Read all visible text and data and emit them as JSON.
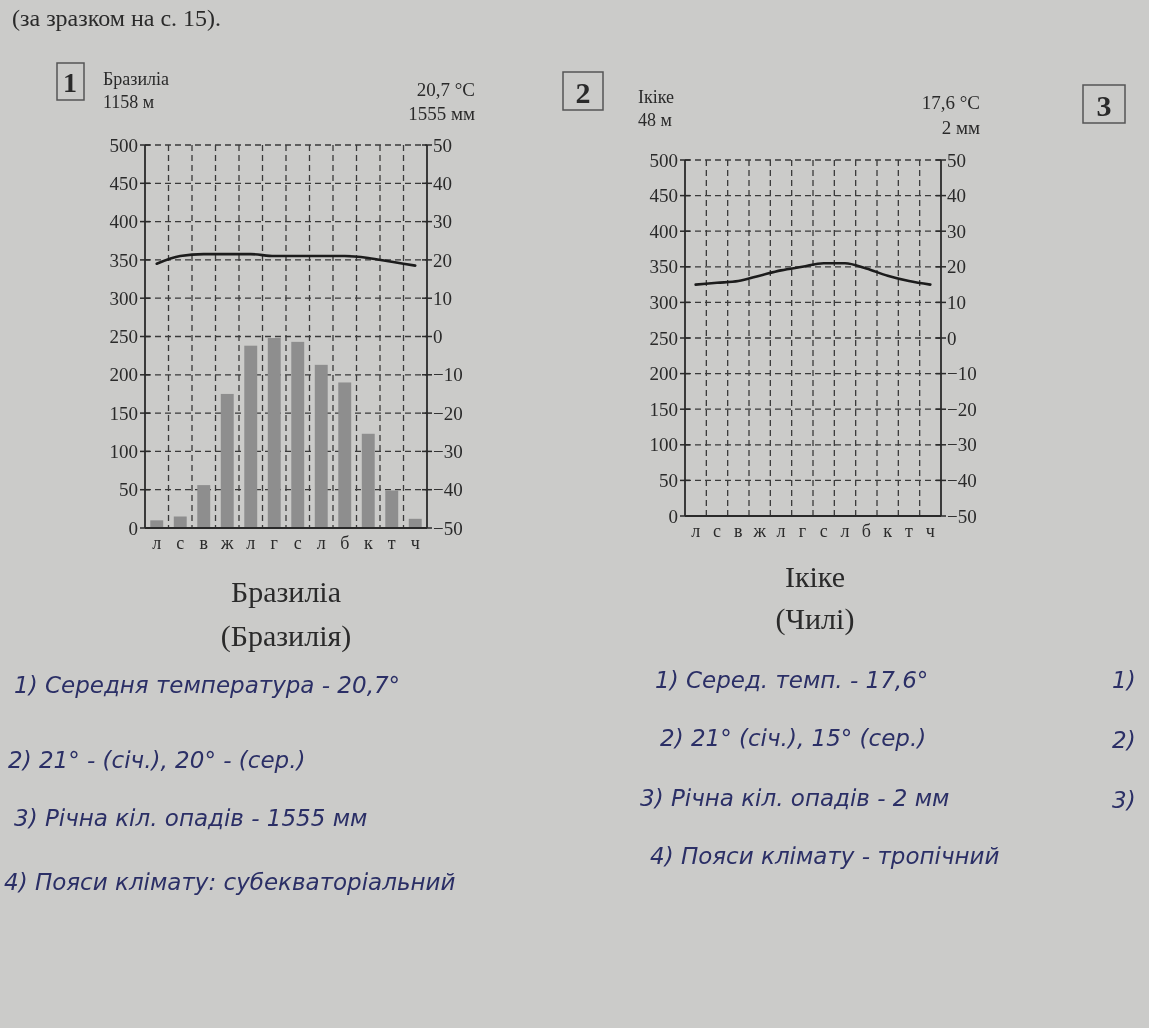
{
  "chart_data": [
    {
      "type": "bar",
      "title": "Бразиліа",
      "subtitle": "(Бразилія)",
      "annotations": [
        "1",
        "Бразиліа",
        "1158 м",
        "20,7 °C",
        "1555 мм",
        "1) Середня температура - 20,7°",
        "2) 21° - (січ.), 20° - (сер.)",
        "3) Річна кіл. опадів - 1555 мм",
        "4) Пояси клімату: субекваторіальний"
      ],
      "categories": [
        "л",
        "с",
        "в",
        "ж",
        "л",
        "г",
        "с",
        "л",
        "б",
        "к",
        "т",
        "ч"
      ],
      "series": [
        {
          "type": "bar",
          "color": "#8e8e8e",
          "values": [
            10,
            15,
            56,
            175,
            238,
            248,
            243,
            213,
            190,
            123,
            49,
            12
          ]
        },
        {
          "type": "line",
          "axis": "y2",
          "color": "#1c1c1c",
          "values": [
            19,
            21,
            21.5,
            21.5,
            21.5,
            21,
            21,
            21,
            21,
            20.5,
            19.5,
            18.5
          ]
        }
      ],
      "ylim": [
        0,
        500
      ],
      "yticks": [
        0,
        50,
        100,
        150,
        200,
        250,
        300,
        350,
        400,
        450,
        500
      ],
      "y2lim": [
        -50,
        50
      ],
      "y2ticks": [
        -50,
        -40,
        -30,
        -20,
        -10,
        0,
        10,
        20,
        30,
        40,
        50
      ],
      "grid": true
    },
    {
      "type": "line",
      "title": "Ікіке",
      "subtitle": "(Чилі)",
      "annotations": [
        "2",
        "Ікіке",
        "48 м",
        "17,6 °C",
        "2 мм",
        "1) Серед. темп. - 17,6°",
        "2) 21° (січ.), 15° (сер.)",
        "3) Річна кіл. опадів - 2 мм",
        "4) Пояси клімату - тропічний"
      ],
      "categories": [
        "л",
        "с",
        "в",
        "ж",
        "л",
        "г",
        "с",
        "л",
        "б",
        "к",
        "т",
        "ч"
      ],
      "series": [
        {
          "type": "line",
          "axis": "y2",
          "color": "#1c1c1c",
          "values": [
            15,
            15.5,
            16,
            17.5,
            19,
            20,
            21,
            21,
            19.5,
            17.5,
            16,
            15
          ]
        }
      ],
      "ylim": [
        0,
        500
      ],
      "yticks": [
        0,
        50,
        100,
        150,
        200,
        250,
        300,
        350,
        400,
        450,
        500
      ],
      "y2lim": [
        -50,
        50
      ],
      "y2ticks": [
        -50,
        -40,
        -30,
        -20,
        -10,
        0,
        10,
        20,
        30,
        40,
        50
      ],
      "grid": true
    },
    {
      "type": "other",
      "annotations": [
        "(за зразком на с. 15).",
        "3",
        "1)",
        "2)",
        "3)"
      ]
    }
  ]
}
